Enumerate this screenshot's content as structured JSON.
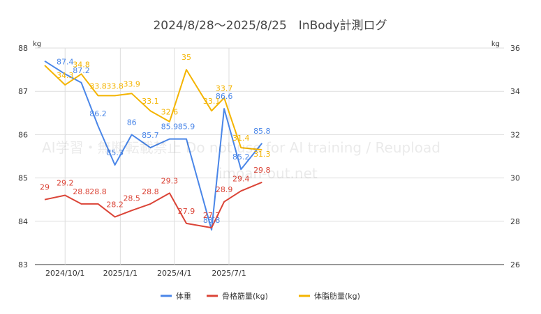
{
  "chart_data": {
    "type": "line",
    "title": "2024/8/28～2025/8/25　InBody計測ログ",
    "x": [
      "2024/8/28",
      "2024/10/1",
      "2024/10/28",
      "2024/11/25",
      "2024/12/23",
      "2025/1/20",
      "2025/2/20",
      "2025/3/24",
      "2025/4/21",
      "2025/6/2",
      "2025/6/23",
      "2025/7/21",
      "2025/8/25"
    ],
    "x_ticks": [
      "2024/10/1",
      "2025/1/1",
      "2025/4/1",
      "2025/7/1"
    ],
    "y_left": {
      "unit": "kg",
      "range": [
        83,
        88
      ],
      "ticks": [
        "83",
        "84",
        "85",
        "86",
        "87",
        "88"
      ]
    },
    "y_right": {
      "unit": "kg",
      "range": [
        26,
        36
      ],
      "ticks": [
        "26",
        "28",
        "30",
        "32",
        "34",
        "36"
      ]
    },
    "grid": true,
    "legend_position": "bottom",
    "series": [
      {
        "name": "体重",
        "axis": "left",
        "color": "#4a86e8",
        "values": [
          87.7,
          87.4,
          87.2,
          86.2,
          85.3,
          86,
          85.7,
          85.9,
          85.9,
          83.8,
          86.6,
          85.2,
          85.8
        ],
        "labels": [
          "",
          "87.4",
          "87.2",
          "86.2",
          "85.3",
          "86",
          "85.7",
          "85.9",
          "85.9",
          "83.8",
          "86.6",
          "85.2",
          "85.8"
        ]
      },
      {
        "name": "骨格筋量(kg)",
        "axis": "right",
        "color": "#db4437",
        "values": [
          29,
          29.2,
          28.8,
          28.8,
          28.2,
          28.5,
          28.8,
          29.3,
          27.9,
          27.7,
          28.9,
          29.4,
          29.8
        ],
        "labels": [
          "29",
          "29.2",
          "28.8",
          "28.8",
          "28.2",
          "28.5",
          "28.8",
          "29.3",
          "27.9",
          "27.7",
          "28.9",
          "29.4",
          "29.8"
        ]
      },
      {
        "name": "体脂肪量(kg)",
        "axis": "right",
        "color": "#f4b400",
        "values": [
          35.2,
          34.3,
          34.8,
          33.8,
          33.8,
          33.9,
          33.1,
          32.6,
          35,
          33.1,
          33.7,
          31.4,
          31.3
        ],
        "labels": [
          "",
          "34.3",
          "34.8",
          "33.8",
          "33.8",
          "33.9",
          "33.1",
          "32.6",
          "35",
          "33.1",
          "33.7",
          "31.4",
          "31.3"
        ]
      }
    ]
  },
  "watermark": {
    "line1": "AI学習・無断転載禁止 Do not use for AI training / Reupload",
    "line2": "imoan-out.net"
  }
}
